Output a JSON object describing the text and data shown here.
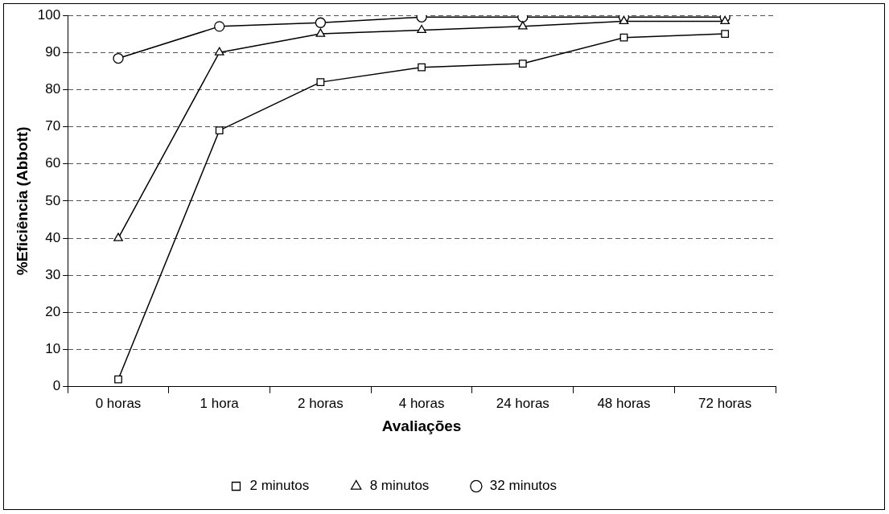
{
  "chart_data": {
    "type": "line",
    "xlabel": "Avaliações",
    "ylabel": "%Eficiência (Abbott)",
    "categories": [
      "0 horas",
      "1 hora",
      "2 horas",
      "4 horas",
      "24 horas",
      "48 horas",
      "72 horas"
    ],
    "series": [
      {
        "name": "2 minutos",
        "color": "#000000",
        "marker": "square",
        "values": [
          2,
          69,
          82,
          86,
          87,
          94,
          95
        ]
      },
      {
        "name": "8 minutos",
        "color": "#000000",
        "marker": "triangle",
        "values": [
          40,
          90,
          95,
          96,
          97,
          98.4,
          98.4
        ]
      },
      {
        "name": "32 minutos",
        "color": "#000000",
        "marker": "circle",
        "values": [
          88.4,
          97,
          98,
          99.5,
          99.5,
          99.5,
          99.5
        ]
      }
    ],
    "ylim": [
      0,
      100
    ],
    "yticks": [
      0,
      10,
      20,
      30,
      40,
      50,
      60,
      70,
      80,
      90,
      100
    ],
    "grid": "y",
    "legend": "bottom",
    "line_style": "solid"
  }
}
